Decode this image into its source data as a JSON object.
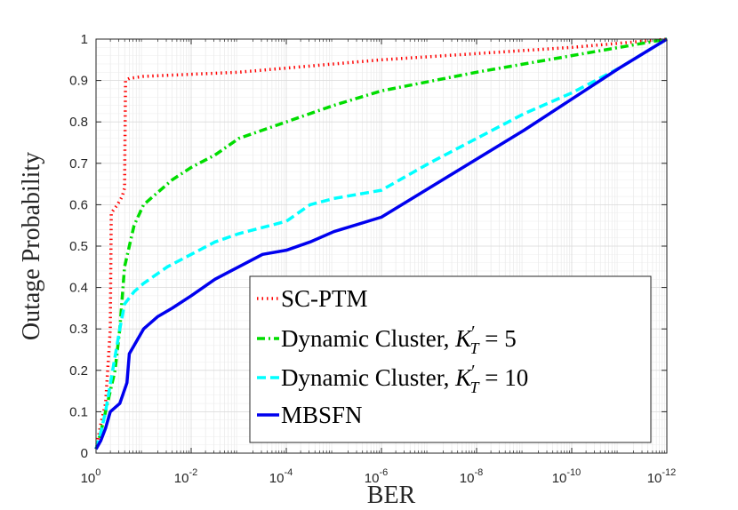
{
  "chart_data": {
    "type": "line",
    "title": "",
    "xlabel": "BER",
    "ylabel": "Outage Probability",
    "xscale": "log-reversed",
    "xlim_exponent": [
      0,
      -12
    ],
    "ylim": [
      0,
      1
    ],
    "x_ticks": [
      {
        "base": "10",
        "exp": "0"
      },
      {
        "base": "10",
        "exp": "-2"
      },
      {
        "base": "10",
        "exp": "-4"
      },
      {
        "base": "10",
        "exp": "-6"
      },
      {
        "base": "10",
        "exp": "-8"
      },
      {
        "base": "10",
        "exp": "-10"
      },
      {
        "base": "10",
        "exp": "-12"
      }
    ],
    "y_ticks": [
      "0",
      "0.1",
      "0.2",
      "0.3",
      "0.4",
      "0.5",
      "0.6",
      "0.7",
      "0.8",
      "0.9",
      "1"
    ],
    "grid": true,
    "legend_position": "bottom-right",
    "series": [
      {
        "name": "SC-PTM",
        "color": "#ff0000",
        "dash": "dotted",
        "points": [
          [
            0,
            0.01
          ],
          [
            -0.05,
            0.04
          ],
          [
            -0.1,
            0.07
          ],
          [
            -0.2,
            0.12
          ],
          [
            -0.3,
            0.3
          ],
          [
            -0.32,
            0.58
          ],
          [
            -0.45,
            0.6
          ],
          [
            -0.55,
            0.62
          ],
          [
            -0.6,
            0.64
          ],
          [
            -0.62,
            0.9
          ],
          [
            -0.7,
            0.905
          ],
          [
            -1,
            0.91
          ],
          [
            -2,
            0.915
          ],
          [
            -3,
            0.92
          ],
          [
            -4,
            0.93
          ],
          [
            -5,
            0.94
          ],
          [
            -6,
            0.95
          ],
          [
            -8,
            0.965
          ],
          [
            -10,
            0.98
          ],
          [
            -12,
            1.0
          ]
        ]
      },
      {
        "name": "Dynamic Cluster, K'_T = 5",
        "legend_prefix": "Dynamic Cluster, ",
        "legend_math_var": "K",
        "legend_math_sup": "′",
        "legend_math_sub": "T",
        "legend_math_rhs": " = 5",
        "color": "#00dd00",
        "dash": "dashdot",
        "points": [
          [
            0,
            0.01
          ],
          [
            -0.1,
            0.05
          ],
          [
            -0.2,
            0.1
          ],
          [
            -0.3,
            0.15
          ],
          [
            -0.4,
            0.2
          ],
          [
            -0.5,
            0.3
          ],
          [
            -0.6,
            0.45
          ],
          [
            -0.7,
            0.5
          ],
          [
            -0.8,
            0.55
          ],
          [
            -1.0,
            0.6
          ],
          [
            -1.3,
            0.63
          ],
          [
            -1.6,
            0.66
          ],
          [
            -2,
            0.69
          ],
          [
            -2.5,
            0.72
          ],
          [
            -3,
            0.76
          ],
          [
            -3.5,
            0.78
          ],
          [
            -4,
            0.8
          ],
          [
            -5,
            0.84
          ],
          [
            -6,
            0.875
          ],
          [
            -8,
            0.92
          ],
          [
            -10,
            0.96
          ],
          [
            -12,
            1.0
          ]
        ]
      },
      {
        "name": "Dynamic Cluster, K'_T = 10",
        "legend_prefix": "Dynamic Cluster, ",
        "legend_math_var": "K",
        "legend_math_sup": "′",
        "legend_math_sub": "T",
        "legend_math_rhs": " = 10",
        "color": "#00ffff",
        "dash": "dashed",
        "points": [
          [
            0,
            0.01
          ],
          [
            -0.1,
            0.05
          ],
          [
            -0.2,
            0.1
          ],
          [
            -0.35,
            0.2
          ],
          [
            -0.5,
            0.3
          ],
          [
            -0.6,
            0.36
          ],
          [
            -0.8,
            0.39
          ],
          [
            -1.0,
            0.41
          ],
          [
            -1.5,
            0.45
          ],
          [
            -2,
            0.48
          ],
          [
            -2.5,
            0.51
          ],
          [
            -3,
            0.53
          ],
          [
            -4,
            0.56
          ],
          [
            -4.5,
            0.6
          ],
          [
            -5,
            0.615
          ],
          [
            -6,
            0.635
          ],
          [
            -7,
            0.7
          ],
          [
            -8,
            0.76
          ],
          [
            -9,
            0.82
          ],
          [
            -10,
            0.87
          ],
          [
            -11,
            0.93
          ],
          [
            -12,
            1.0
          ]
        ]
      },
      {
        "name": "MBSFN",
        "color": "#0000ee",
        "dash": "solid",
        "points": [
          [
            0,
            0.01
          ],
          [
            -0.1,
            0.03
          ],
          [
            -0.2,
            0.06
          ],
          [
            -0.3,
            0.1
          ],
          [
            -0.5,
            0.12
          ],
          [
            -0.65,
            0.17
          ],
          [
            -0.7,
            0.24
          ],
          [
            -0.8,
            0.26
          ],
          [
            -1.0,
            0.3
          ],
          [
            -1.3,
            0.33
          ],
          [
            -1.6,
            0.35
          ],
          [
            -2,
            0.38
          ],
          [
            -2.5,
            0.42
          ],
          [
            -3,
            0.45
          ],
          [
            -3.5,
            0.48
          ],
          [
            -4,
            0.49
          ],
          [
            -4.5,
            0.51
          ],
          [
            -5,
            0.535
          ],
          [
            -6,
            0.57
          ],
          [
            -7,
            0.64
          ],
          [
            -8,
            0.71
          ],
          [
            -9,
            0.78
          ],
          [
            -10,
            0.855
          ],
          [
            -11,
            0.93
          ],
          [
            -12,
            1.0
          ]
        ]
      }
    ]
  }
}
